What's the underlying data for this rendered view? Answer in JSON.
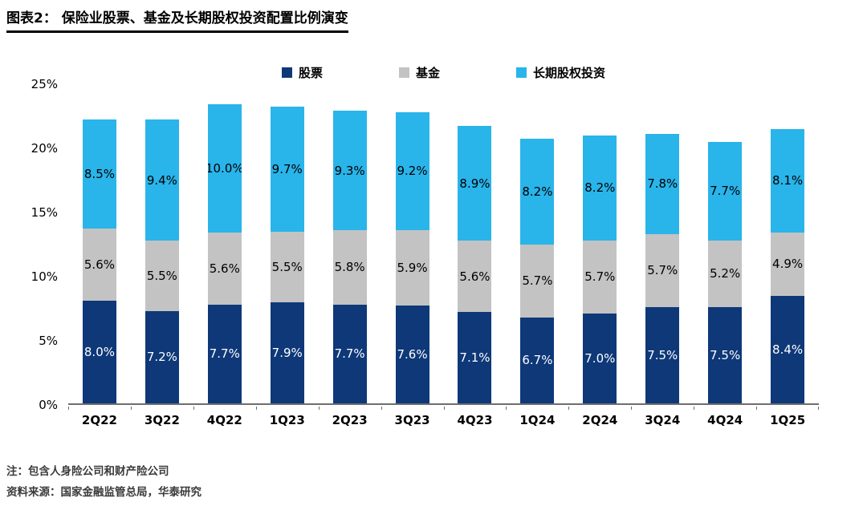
{
  "header": {
    "title": "图表2： 保险业股票、基金及长期股权投资配置比例演变"
  },
  "chart_data": {
    "type": "bar",
    "stacked": true,
    "title": "保险业股票、基金及长期股权投资配置比例演变",
    "categories": [
      "2Q22",
      "3Q22",
      "4Q22",
      "1Q23",
      "2Q23",
      "3Q23",
      "4Q23",
      "1Q24",
      "2Q24",
      "3Q24",
      "4Q24",
      "1Q25"
    ],
    "series": [
      {
        "name": "股票",
        "color": "#0E3878",
        "label_color": "#FFFFFF",
        "values": [
          8.0,
          7.2,
          7.7,
          7.9,
          7.7,
          7.6,
          7.1,
          6.7,
          7.0,
          7.5,
          7.5,
          8.4
        ],
        "labels": [
          "8.0%",
          "7.2%",
          "7.7%",
          "7.9%",
          "7.7%",
          "7.6%",
          "7.1%",
          "6.7%",
          "7.0%",
          "7.5%",
          "7.5%",
          "8.4%"
        ]
      },
      {
        "name": "基金",
        "color": "#C3C3C3",
        "label_color": "#000000",
        "values": [
          5.6,
          5.5,
          5.6,
          5.5,
          5.8,
          5.9,
          5.6,
          5.7,
          5.7,
          5.7,
          5.2,
          4.9
        ],
        "labels": [
          "5.6%",
          "5.5%",
          "5.6%",
          "5.5%",
          "5.8%",
          "5.9%",
          "5.6%",
          "5.7%",
          "5.7%",
          "5.7%",
          "5.2%",
          "4.9%"
        ]
      },
      {
        "name": "长期股权投资",
        "color": "#29B4EA",
        "label_color": "#000000",
        "values": [
          8.5,
          9.4,
          10.0,
          9.7,
          9.3,
          9.2,
          8.9,
          8.2,
          8.2,
          7.8,
          7.7,
          8.1
        ],
        "labels": [
          "8.5%",
          "9.4%",
          "10.0%",
          "9.7%",
          "9.3%",
          "9.2%",
          "8.9%",
          "8.2%",
          "8.2%",
          "7.8%",
          "7.7%",
          "8.1%"
        ]
      }
    ],
    "y_ticks": [
      {
        "value": 0,
        "label": "0%"
      },
      {
        "value": 5,
        "label": "5%"
      },
      {
        "value": 10,
        "label": "10%"
      },
      {
        "value": 15,
        "label": "15%"
      },
      {
        "value": 20,
        "label": "20%"
      },
      {
        "value": 25,
        "label": "25%"
      }
    ],
    "ylim": [
      0,
      25
    ],
    "grid": false,
    "legend_position": "top"
  },
  "footnotes": {
    "note": "注：包含人身险公司和财产险公司",
    "source": "资料来源：国家金融监管总局，华泰研究"
  }
}
